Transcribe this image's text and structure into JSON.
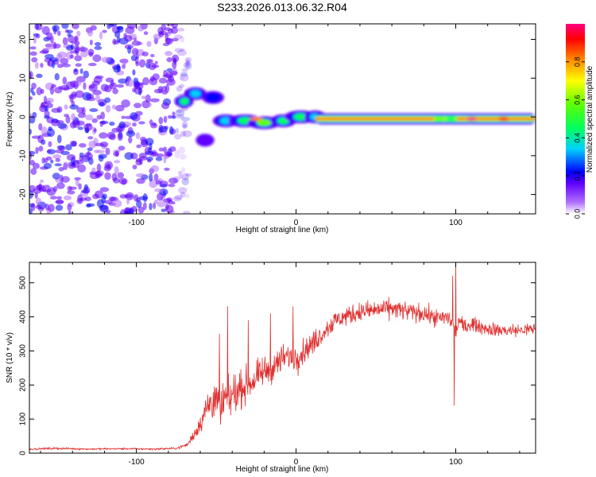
{
  "figure_title": "S233.2026.013.06.32.R04",
  "colors": {
    "trace": "#e03030",
    "axis": "#000000",
    "background": "#ffffff"
  },
  "chart_data": [
    {
      "type": "heatmap",
      "title": "S233.2026.013.06.32.R04",
      "xlabel": "Height of straight line (km)",
      "ylabel": "Frequency (Hz)",
      "xlim": [
        -167,
        150
      ],
      "ylim": [
        -25,
        24
      ],
      "xticks": [
        -100,
        0,
        100
      ],
      "yticks": [
        -20,
        -10,
        0,
        10,
        20
      ],
      "colorbar": {
        "label": "Normalized spectral amplitude",
        "range": [
          0.0,
          1.0
        ],
        "ticks": [
          0.0,
          0.2,
          0.4,
          0.6,
          0.8
        ],
        "tick_labels": [
          "0.0",
          "0.2",
          "0.4",
          "0.6",
          "0.8"
        ],
        "colormap": [
          "#ffffff",
          "#8000ff",
          "#0000ff",
          "#00c8ff",
          "#00ff00",
          "#ffff00",
          "#ff8000",
          "#ff0000",
          "#ff0080"
        ]
      },
      "noise_region": {
        "x_from": -167,
        "x_to": -75,
        "freq_from": -25,
        "freq_to": 24,
        "amplitude": 0.1
      },
      "features": [
        {
          "x": -70,
          "freq": 4,
          "width_km": 4,
          "amplitude": 0.35
        },
        {
          "x": -63,
          "freq": 6,
          "width_km": 5,
          "amplitude": 0.3
        },
        {
          "x": -57,
          "freq": -6,
          "width_km": 4,
          "amplitude": 0.15
        },
        {
          "x": -52,
          "freq": 5,
          "width_km": 5,
          "amplitude": 0.2
        },
        {
          "x": -44,
          "freq": -1,
          "width_km": 6,
          "amplitude": 0.3
        },
        {
          "x": -32,
          "freq": -1,
          "width_km": 8,
          "amplitude": 0.35
        },
        {
          "x": -20,
          "freq": -1.5,
          "width_km": 8,
          "amplitude": 0.5
        },
        {
          "x": -8,
          "freq": -1,
          "width_km": 6,
          "amplitude": 0.4
        },
        {
          "x": 3,
          "freq": 0,
          "width_km": 8,
          "amplitude": 0.35
        },
        {
          "x": 12,
          "freq": 0,
          "width_km": 5,
          "amplitude": 0.3
        }
      ],
      "band": {
        "x_from": 12,
        "x_to": 150,
        "freq": -0.5,
        "amplitude": 0.9
      }
    },
    {
      "type": "line",
      "xlabel": "Height of straight line (km)",
      "ylabel": "SNR (10 * v/v)",
      "xlim": [
        -167,
        150
      ],
      "ylim": [
        0,
        560
      ],
      "xticks": [
        -100,
        0,
        100
      ],
      "yticks": [
        0,
        100,
        200,
        300,
        400,
        500
      ],
      "series": [
        {
          "name": "SNR",
          "color": "#e03030",
          "x": [
            -167,
            -150,
            -130,
            -110,
            -90,
            -75,
            -68,
            -62,
            -58,
            -55,
            -52,
            -50,
            -47,
            -45,
            -42,
            -40,
            -35,
            -30,
            -25,
            -20,
            -15,
            -10,
            -5,
            0,
            5,
            10,
            15,
            20,
            25,
            30,
            40,
            50,
            60,
            70,
            80,
            85,
            90,
            95,
            98,
            100,
            102,
            105,
            110,
            120,
            130,
            140,
            150
          ],
          "y": [
            12,
            14,
            12,
            13,
            12,
            14,
            25,
            70,
            110,
            140,
            160,
            150,
            120,
            160,
            150,
            170,
            190,
            200,
            220,
            240,
            250,
            270,
            285,
            280,
            300,
            320,
            345,
            370,
            390,
            400,
            415,
            420,
            425,
            415,
            410,
            400,
            395,
            400,
            380,
            350,
            390,
            370,
            380,
            365,
            360,
            360,
            365
          ],
          "spread": [
            5,
            6,
            5,
            5,
            5,
            6,
            10,
            40,
            70,
            90,
            110,
            110,
            100,
            110,
            100,
            100,
            90,
            85,
            80,
            75,
            70,
            70,
            65,
            70,
            65,
            60,
            55,
            55,
            50,
            50,
            50,
            50,
            50,
            50,
            45,
            45,
            45,
            45,
            45,
            45,
            40,
            40,
            35,
            35,
            35,
            35,
            35
          ],
          "spikes": [
            {
              "x": -48,
              "y": 350
            },
            {
              "x": -43,
              "y": 430
            },
            {
              "x": -30,
              "y": 390
            },
            {
              "x": -16,
              "y": 410
            },
            {
              "x": -8,
              "y": 320
            },
            {
              "x": -2,
              "y": 430
            },
            {
              "x": 98,
              "y": 520
            },
            {
              "x": 99,
              "y": 140
            },
            {
              "x": 100,
              "y": 560
            }
          ]
        }
      ]
    }
  ]
}
